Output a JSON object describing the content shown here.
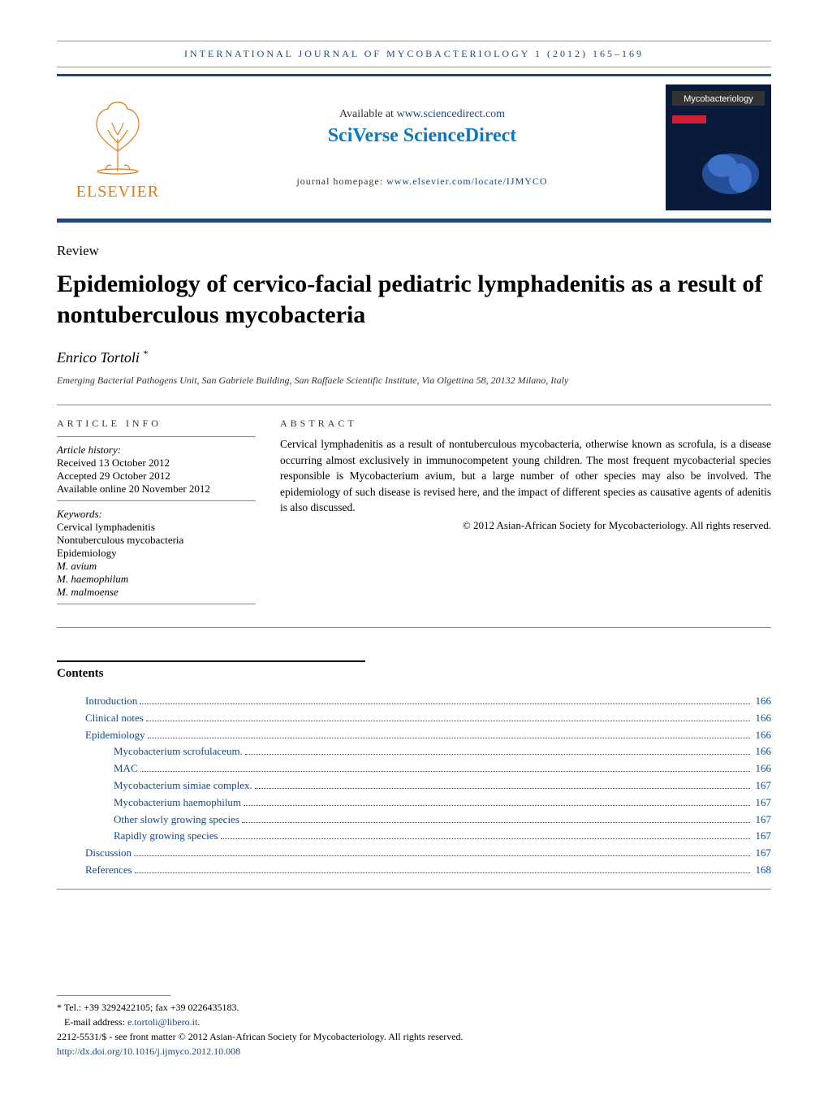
{
  "page": {
    "journal_header": "INTERNATIONAL JOURNAL OF MYCOBACTERIOLOGY 1 (2012) 165–169",
    "available_prefix": "Available at ",
    "available_link": "www.sciencedirect.com",
    "sciverse": "SciVerse ScienceDirect",
    "homepage_prefix": "journal homepage: ",
    "homepage_link": "www.elsevier.com/locate/IJMYCO",
    "cover_label": "Mycobacteriology"
  },
  "article": {
    "type": "Review",
    "title": "Epidemiology of cervico-facial pediatric lymphadenitis as a result of nontuberculous mycobacteria",
    "author": "Enrico Tortoli",
    "author_marker": "*",
    "affiliation": "Emerging Bacterial Pathogens Unit, San Gabriele Building, San Raffaele Scientific Institute, Via Olgettina 58, 20132 Milano, Italy"
  },
  "info": {
    "heading": "ARTICLE INFO",
    "history_label": "Article history:",
    "received": "Received 13 October 2012",
    "accepted": "Accepted 29 October 2012",
    "online": "Available online 20 November 2012",
    "keywords_label": "Keywords:",
    "keywords": [
      "Cervical lymphadenitis",
      "Nontuberculous mycobacteria",
      "Epidemiology",
      "M. avium",
      "M. haemophilum",
      "M. malmoense"
    ]
  },
  "abstract": {
    "heading": "ABSTRACT",
    "text": "Cervical lymphadenitis as a result of nontuberculous mycobacteria, otherwise known as scrofula, is a disease occurring almost exclusively in immunocompetent young children. The most frequent mycobacterial species responsible is Mycobacterium avium, but a large number of other species may also be involved. The epidemiology of such disease is revised here, and the impact of different species as causative agents of adenitis is also discussed.",
    "copyright": "© 2012 Asian-African Society for Mycobacteriology. All rights reserved."
  },
  "contents": {
    "heading": "Contents",
    "items": [
      {
        "title": "Introduction",
        "page": "166",
        "indent": 1
      },
      {
        "title": "Clinical notes",
        "page": "166",
        "indent": 1
      },
      {
        "title": "Epidemiology",
        "page": "166",
        "indent": 1
      },
      {
        "title": "Mycobacterium scrofulaceum.",
        "page": "166",
        "indent": 2
      },
      {
        "title": "MAC",
        "page": "166",
        "indent": 2
      },
      {
        "title": "Mycobacterium simiae complex.",
        "page": "167",
        "indent": 2
      },
      {
        "title": "Mycobacterium haemophilum",
        "page": "167",
        "indent": 2
      },
      {
        "title": "Other slowly growing species",
        "page": "167",
        "indent": 2
      },
      {
        "title": "Rapidly growing species",
        "page": "167",
        "indent": 2
      },
      {
        "title": "Discussion",
        "page": "167",
        "indent": 1
      },
      {
        "title": "References",
        "page": "168",
        "indent": 1
      }
    ]
  },
  "footer": {
    "corr": "* Tel.: +39 3292422105; fax +39 0226435183.",
    "email_label": "E-mail address: ",
    "email": "e.tortoli@libero.it",
    "front_matter": "2212-5531/$ - see front matter © 2012 Asian-African Society for Mycobacteriology. All rights reserved.",
    "doi": "http://dx.doi.org/10.1016/j.ijmyco.2012.10.008"
  },
  "colors": {
    "brand_blue": "#164a8a",
    "elsevier_orange": "#e8790f",
    "sd_blue": "#0d78c2"
  }
}
